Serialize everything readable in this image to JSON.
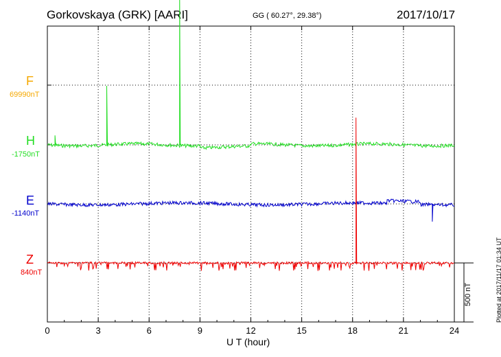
{
  "header": {
    "station": "Gorkovskaya (GRK)  [AARI]",
    "coords": "GG ( 60.27°,  29.38°)",
    "date": "2017/10/17"
  },
  "plotted_note": "Plotted at 2017/11/17 01:34 UT",
  "chart_data": {
    "type": "line",
    "title": "",
    "xlabel": "U T (hour)",
    "xlim": [
      0,
      24
    ],
    "xticks": [
      0,
      3,
      6,
      9,
      12,
      15,
      18,
      21,
      24
    ],
    "grid": true,
    "scale_bar": {
      "label": "500 nT",
      "value_nT": 500
    },
    "series": [
      {
        "name": "F",
        "baseline_label": "69990nT",
        "color": "#f5a800",
        "points": []
      },
      {
        "name": "H",
        "baseline_label": "-1750nT",
        "color": "#22dd22",
        "spikes": [
          {
            "t": 0.45,
            "dv": 80
          },
          {
            "t": 3.5,
            "dv": 500
          },
          {
            "t": 7.8,
            "dv": 1350
          }
        ]
      },
      {
        "name": "E",
        "baseline_label": "-1140nT",
        "color": "#0000cc",
        "spikes": [
          {
            "t": 22.7,
            "dv": -150
          }
        ]
      },
      {
        "name": "Z",
        "baseline_label": "840nT",
        "color": "#ee0000",
        "spikes": [
          {
            "t": 18.2,
            "dv": 1230
          }
        ]
      }
    ]
  }
}
